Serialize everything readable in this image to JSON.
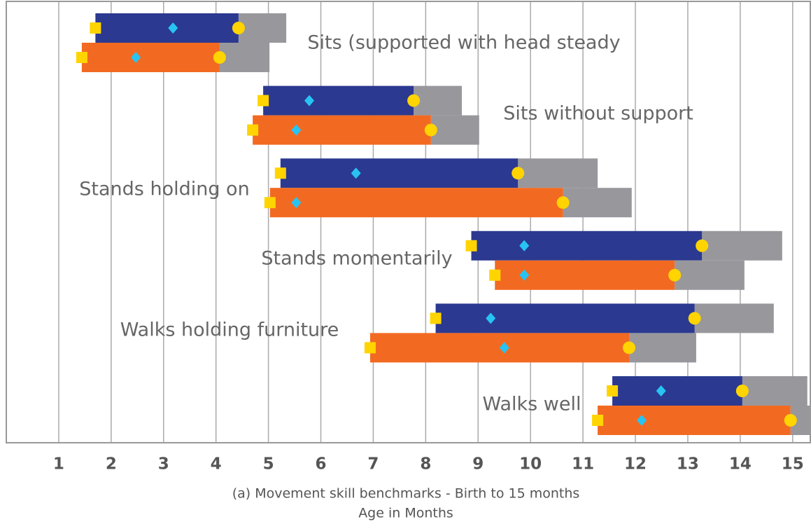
{
  "chart_data": {
    "type": "range",
    "title": "(a) Movement skill benchmarks - Birth to 15 months",
    "x_label": "Age in Months",
    "categories": [
      "Sits (supported with head steady",
      "Sits without support",
      "Stands holding on",
      "Stands momentarily",
      "Walks holding furniture",
      "Walks well"
    ],
    "series": [
      {
        "color": "#2b3990",
        "start": [
          1.7,
          4.9,
          5.23,
          8.87,
          8.19,
          11.56
        ],
        "mid": [
          3.18,
          5.78,
          6.67,
          9.88,
          9.24,
          12.49
        ],
        "mark": [
          4.43,
          7.77,
          9.76,
          13.27,
          13.13,
          14.04
        ],
        "end": [
          5.34,
          8.69,
          11.28,
          14.8,
          14.64,
          15.28
        ]
      },
      {
        "color": "#f26a21",
        "start": [
          1.44,
          4.7,
          5.03,
          9.32,
          6.94,
          11.28
        ],
        "mid": [
          2.47,
          5.53,
          5.53,
          9.88,
          9.5,
          12.12
        ],
        "mark": [
          4.07,
          8.1,
          10.62,
          12.75,
          11.88,
          14.96
        ],
        "end": [
          5.02,
          9.02,
          11.93,
          14.08,
          13.16,
          15.35
        ]
      }
    ],
    "end_color": "#98979c",
    "start_marker_color": "#ffd400",
    "mid_marker_color": "#27c4f3",
    "mark_marker_color": "#ffd400",
    "xlim": [
      0,
      15.35
    ],
    "xticks": [
      1,
      2,
      3,
      4,
      5,
      6,
      7,
      8,
      9,
      10,
      11,
      12,
      13,
      14,
      15
    ],
    "grid": true
  }
}
